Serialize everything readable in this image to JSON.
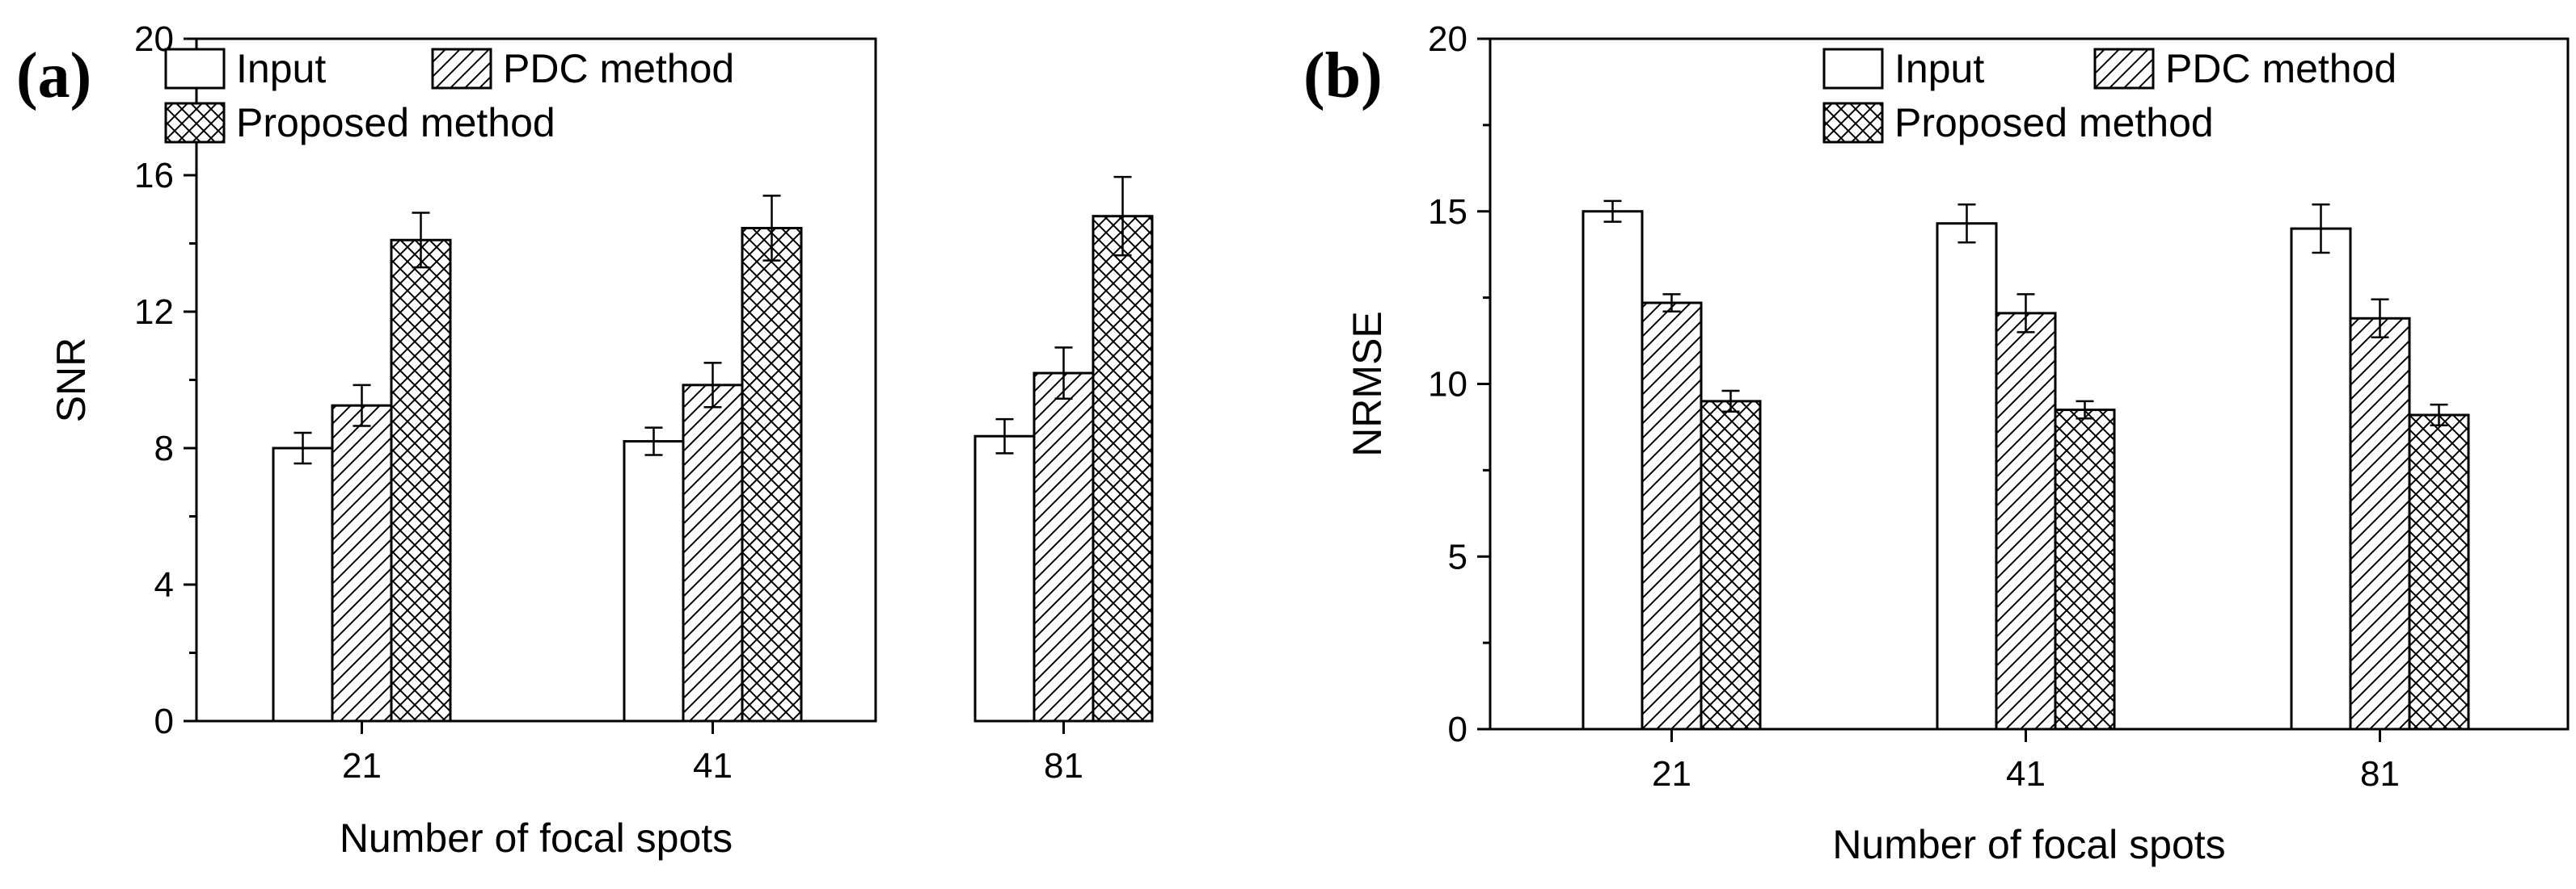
{
  "chart_data": [
    {
      "type": "bar",
      "panel_label": "(a)",
      "title": "",
      "xlabel": "Number of focal spots",
      "ylabel": "SNR",
      "categories": [
        "21",
        "41",
        "81"
      ],
      "ylim": [
        0,
        20
      ],
      "yticks": [
        0,
        4,
        8,
        12,
        16,
        20
      ],
      "legend_position": "top-left",
      "series": [
        {
          "name": "Input",
          "pattern": "blank",
          "values": [
            8.0,
            8.2,
            8.35
          ],
          "errors": [
            0.45,
            0.4,
            0.5
          ]
        },
        {
          "name": "PDC method",
          "pattern": "diagonal",
          "values": [
            9.25,
            9.85,
            10.2
          ],
          "errors": [
            0.6,
            0.65,
            0.75
          ]
        },
        {
          "name": "Proposed method",
          "pattern": "crosshatch",
          "values": [
            14.1,
            14.45,
            14.8
          ],
          "errors": [
            0.8,
            0.95,
            1.15
          ]
        }
      ]
    },
    {
      "type": "bar",
      "panel_label": "(b)",
      "title": "",
      "xlabel": "Number of focal spots",
      "ylabel": "NRMSE",
      "categories": [
        "21",
        "41",
        "81"
      ],
      "ylim": [
        0,
        20
      ],
      "yticks": [
        0,
        5,
        10,
        15,
        20
      ],
      "legend_position": "top-right",
      "series": [
        {
          "name": "Input",
          "pattern": "blank",
          "values": [
            15.0,
            14.65,
            14.5
          ],
          "errors": [
            0.3,
            0.55,
            0.7
          ]
        },
        {
          "name": "PDC method",
          "pattern": "diagonal",
          "values": [
            12.35,
            12.05,
            11.9
          ],
          "errors": [
            0.25,
            0.55,
            0.55
          ]
        },
        {
          "name": "Proposed method",
          "pattern": "crosshatch",
          "values": [
            9.5,
            9.25,
            9.1
          ],
          "errors": [
            0.3,
            0.25,
            0.3
          ]
        }
      ]
    }
  ]
}
